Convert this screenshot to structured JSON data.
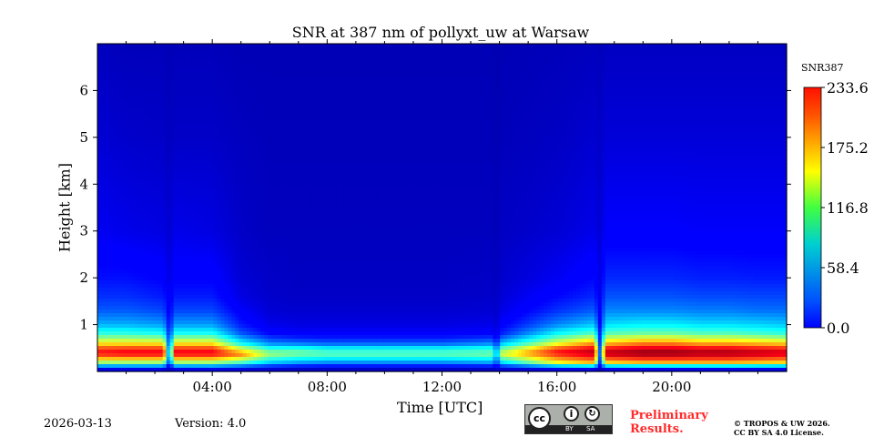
{
  "chart_data": {
    "type": "heatmap",
    "title": "SNR at 387 nm of pollyxt_uw at Warsaw",
    "xlabel": "Time [UTC]",
    "ylabel": "Height [km]",
    "xlim_hours": [
      0,
      24
    ],
    "ylim": [
      0,
      7
    ],
    "xticks": [
      {
        "v": 4,
        "label": "04:00"
      },
      {
        "v": 8,
        "label": "08:00"
      },
      {
        "v": 12,
        "label": "12:00"
      },
      {
        "v": 16,
        "label": "16:00"
      },
      {
        "v": 20,
        "label": "20:00"
      }
    ],
    "yticks": [
      {
        "v": 1,
        "label": "1"
      },
      {
        "v": 2,
        "label": "2"
      },
      {
        "v": 3,
        "label": "3"
      },
      {
        "v": 4,
        "label": "4"
      },
      {
        "v": 5,
        "label": "5"
      },
      {
        "v": 6,
        "label": "6"
      }
    ],
    "colorbar": {
      "label": "SNR387",
      "range": [
        0,
        233.6
      ],
      "colormap": "jet",
      "ticks": [
        {
          "v": 0,
          "label": "0.0"
        },
        {
          "v": 58.4,
          "label": "58.4"
        },
        {
          "v": 116.8,
          "label": "116.8"
        },
        {
          "v": 175.2,
          "label": "175.2"
        },
        {
          "v": 233.6,
          "label": "233.6"
        }
      ]
    },
    "times_hours": [
      0,
      1,
      2.3,
      2.5,
      2.7,
      4,
      5,
      6,
      7,
      8,
      10,
      12,
      13.8,
      13.9,
      14,
      16,
      17.3,
      17.5,
      17.7,
      19,
      20,
      21,
      22,
      23,
      24
    ],
    "heights_km": [
      0.05,
      0.2,
      0.35,
      0.45,
      0.6,
      0.8,
      1.0,
      1.3,
      1.6,
      2.0,
      3.0,
      5.0,
      7.0
    ],
    "values": [
      [
        20,
        20,
        20,
        10,
        20,
        20,
        18,
        15,
        12,
        12,
        12,
        12,
        12,
        12,
        15,
        20,
        20,
        10,
        20,
        20,
        20,
        20,
        20,
        20,
        20
      ],
      [
        130,
        130,
        130,
        40,
        130,
        130,
        110,
        80,
        70,
        65,
        65,
        65,
        70,
        20,
        80,
        150,
        170,
        40,
        160,
        170,
        170,
        170,
        170,
        165,
        160
      ],
      [
        190,
        195,
        195,
        50,
        195,
        195,
        170,
        120,
        110,
        105,
        105,
        105,
        110,
        20,
        130,
        190,
        210,
        50,
        210,
        220,
        220,
        215,
        215,
        210,
        205
      ],
      [
        200,
        205,
        205,
        50,
        205,
        205,
        150,
        110,
        110,
        100,
        100,
        100,
        105,
        20,
        120,
        200,
        220,
        50,
        215,
        225,
        225,
        220,
        220,
        215,
        210
      ],
      [
        150,
        150,
        150,
        40,
        150,
        150,
        90,
        60,
        55,
        50,
        50,
        50,
        60,
        15,
        70,
        140,
        170,
        40,
        160,
        175,
        175,
        165,
        165,
        160,
        155
      ],
      [
        100,
        100,
        95,
        35,
        95,
        95,
        50,
        30,
        25,
        25,
        25,
        25,
        28,
        12,
        35,
        90,
        110,
        35,
        110,
        115,
        115,
        110,
        110,
        105,
        100
      ],
      [
        70,
        70,
        65,
        30,
        65,
        65,
        35,
        20,
        18,
        18,
        18,
        18,
        20,
        10,
        25,
        60,
        75,
        30,
        80,
        85,
        85,
        80,
        80,
        78,
        75
      ],
      [
        50,
        50,
        45,
        25,
        45,
        45,
        25,
        15,
        14,
        14,
        14,
        14,
        15,
        10,
        18,
        40,
        50,
        25,
        60,
        60,
        60,
        58,
        58,
        55,
        55
      ],
      [
        40,
        40,
        35,
        22,
        35,
        35,
        18,
        13,
        12,
        12,
        12,
        12,
        13,
        9,
        15,
        30,
        38,
        22,
        48,
        48,
        48,
        46,
        46,
        45,
        45
      ],
      [
        32,
        32,
        28,
        18,
        28,
        28,
        15,
        12,
        11,
        11,
        11,
        11,
        12,
        8,
        13,
        22,
        30,
        20,
        38,
        38,
        38,
        36,
        36,
        35,
        35
      ],
      [
        22,
        20,
        18,
        14,
        20,
        18,
        12,
        10,
        10,
        10,
        10,
        10,
        10,
        7,
        11,
        15,
        20,
        15,
        25,
        25,
        25,
        24,
        24,
        24,
        24
      ],
      [
        15,
        13,
        12,
        10,
        12,
        12,
        10,
        9,
        9,
        9,
        9,
        9,
        9,
        6,
        9,
        11,
        14,
        12,
        16,
        16,
        16,
        16,
        16,
        16,
        16
      ],
      [
        10,
        9,
        9,
        8,
        9,
        9,
        8,
        8,
        8,
        8,
        8,
        8,
        8,
        6,
        8,
        9,
        10,
        9,
        11,
        11,
        11,
        11,
        11,
        11,
        11
      ]
    ]
  },
  "footer": {
    "date": "2026-03-13",
    "version": "Version: 4.0",
    "license_badge": {
      "cc": "cc",
      "by": "BY",
      "sa": "SA"
    },
    "preliminary_line1": "Preliminary",
    "preliminary_line2": "Results.",
    "copyright_line1": "© TROPOS & UW 2026.",
    "copyright_line2": "CC BY SA 4.0 License.",
    "preliminary_color": "#ff2a2a"
  }
}
